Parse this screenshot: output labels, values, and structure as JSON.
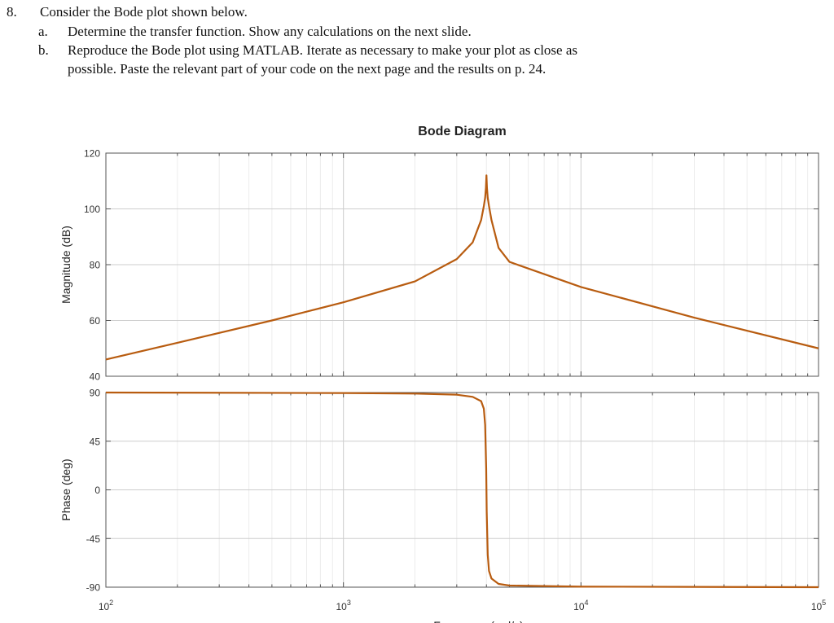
{
  "question": {
    "number": "8.",
    "text": "Consider the Bode plot shown below.",
    "parts": [
      {
        "label": "a.",
        "lines": [
          "Determine the transfer function.  Show any calculations on the next slide."
        ]
      },
      {
        "label": "b.",
        "lines": [
          "Reproduce the Bode plot using MATLAB.  Iterate as necessary to make your plot as close as",
          "possible.  Paste the relevant  part of your code on the next page and the results on p. 24."
        ]
      }
    ]
  },
  "chart_data": {
    "type": "line",
    "title": "Bode Diagram",
    "xlabel": "Frequency  (rad/s)",
    "xscale": "log",
    "xlim": [
      100,
      100000
    ],
    "x_tick_labels": [
      {
        "base": "10",
        "exp": "2"
      },
      {
        "base": "10",
        "exp": "3"
      },
      {
        "base": "10",
        "exp": "4"
      },
      {
        "base": "10",
        "exp": "5"
      }
    ],
    "grid": true,
    "line_color": "#b85c10",
    "panels": [
      {
        "name": "magnitude",
        "ylabel": "Magnitude (dB)",
        "ylim": [
          40,
          120
        ],
        "yticks": [
          40,
          60,
          80,
          100,
          120
        ],
        "y_tick_labels": [
          "40",
          "60",
          "80",
          "100",
          "120"
        ],
        "series": [
          {
            "x": [
              100,
              200,
              500,
              1000,
              2000,
              3000,
              3500,
              3800,
              3900,
              3950,
              3980,
              4000,
              4020,
              4050,
              4100,
              4200,
              4500,
              5000,
              10000,
              30000,
              100000
            ],
            "y": [
              46,
              52,
              60,
              66.5,
              74,
              82,
              88,
              96,
              101,
              104,
              107.5,
              112,
              107.5,
              104,
              101,
              96,
              86,
              81,
              72,
              61,
              50
            ]
          }
        ]
      },
      {
        "name": "phase",
        "ylabel": "Phase (deg)",
        "ylim": [
          -90,
          90
        ],
        "yticks": [
          -90,
          -45,
          0,
          45,
          90
        ],
        "y_tick_labels": [
          "-90",
          "-45",
          "0",
          "45",
          "90"
        ],
        "series": [
          {
            "x": [
              100,
              1000,
              2000,
              3000,
              3500,
              3800,
              3900,
              3950,
              3990,
              4000,
              4010,
              4050,
              4100,
              4200,
              4500,
              5000,
              10000,
              100000
            ],
            "y": [
              90,
              89.5,
              89,
              88,
              86,
              82,
              75,
              60,
              20,
              0,
              -20,
              -60,
              -75,
              -82,
              -87,
              -88.5,
              -89.5,
              -90
            ]
          }
        ]
      }
    ]
  }
}
